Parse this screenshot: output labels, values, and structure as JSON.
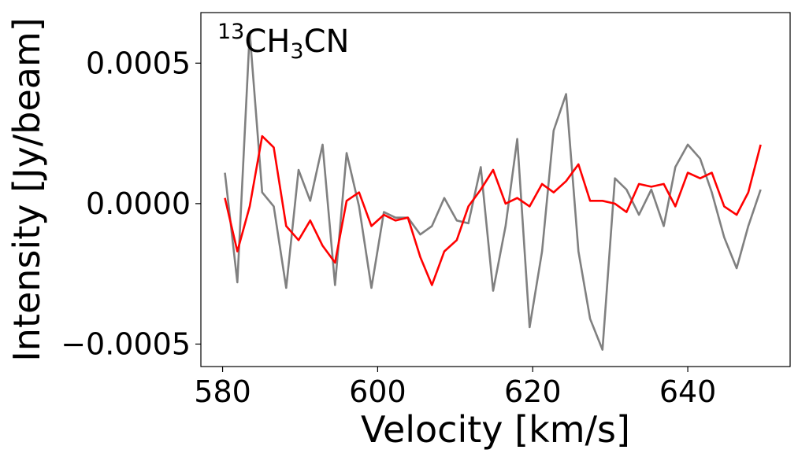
{
  "chart_data": {
    "type": "line",
    "title": "",
    "annotation": {
      "sup": "13",
      "pre": "CH",
      "sub": "3",
      "post": "CN"
    },
    "xlabel": "Velocity [km/s]",
    "ylabel": "Intensity [Jy/beam]",
    "xlim": [
      577.2,
      653.2
    ],
    "ylim": [
      -0.00058,
      0.00068
    ],
    "xticks": [
      {
        "value": 580,
        "label": "580"
      },
      {
        "value": 600,
        "label": "600"
      },
      {
        "value": 620,
        "label": "620"
      },
      {
        "value": 640,
        "label": "640"
      }
    ],
    "yticks": [
      {
        "value": 0.0005,
        "label": "0.0005"
      },
      {
        "value": 0.0,
        "label": "0.0000"
      },
      {
        "value": -0.0005,
        "label": "−0.0005"
      }
    ],
    "grid": false,
    "x": [
      580.3,
      581.9,
      583.5,
      585.1,
      586.6,
      588.2,
      589.8,
      591.3,
      592.9,
      594.5,
      596.0,
      597.6,
      599.2,
      600.8,
      602.3,
      603.9,
      605.5,
      607.0,
      608.6,
      610.2,
      611.7,
      613.3,
      614.9,
      616.5,
      618.0,
      619.6,
      621.2,
      622.7,
      624.3,
      625.9,
      627.4,
      629.0,
      630.6,
      632.1,
      633.7,
      635.3,
      636.9,
      638.4,
      640.0,
      641.6,
      643.1,
      644.7,
      646.3,
      647.8,
      649.4
    ],
    "series": [
      {
        "color": "#808080",
        "values": [
          0.00011,
          -0.00028,
          0.00061,
          4e-05,
          -1e-05,
          -0.0003,
          0.00012,
          1e-05,
          0.00021,
          -0.00029,
          0.00018,
          -1e-05,
          -0.0003,
          -3e-05,
          -5e-05,
          -5e-05,
          -0.00011,
          -8e-05,
          2e-05,
          -6e-05,
          -7e-05,
          0.00013,
          -0.00031,
          -8e-05,
          0.00023,
          -0.00044,
          -0.00017,
          0.00026,
          0.00039,
          -0.00017,
          -0.00041,
          -0.00052,
          9e-05,
          5e-05,
          -4e-05,
          5e-05,
          -8e-05,
          0.00013,
          0.00021,
          0.00016,
          4e-05,
          -0.00012,
          -0.00023,
          -8e-05,
          5e-05
        ]
      },
      {
        "color": "#ff0000",
        "values": [
          2e-05,
          -0.00017,
          -1e-05,
          0.00024,
          0.0002,
          -8e-05,
          -0.00013,
          -6e-05,
          -0.00015,
          -0.00021,
          1e-05,
          4e-05,
          -8e-05,
          -4e-05,
          -6e-05,
          -5e-05,
          -0.00019,
          -0.00029,
          -0.00017,
          -0.00013,
          -1e-05,
          5e-05,
          0.00012,
          0.0,
          2e-05,
          -1e-05,
          7e-05,
          4e-05,
          8e-05,
          0.00014,
          1e-05,
          1e-05,
          0.0,
          -3e-05,
          7e-05,
          6e-05,
          7e-05,
          -1e-05,
          0.00011,
          9e-05,
          0.00011,
          -1e-05,
          -4e-05,
          4e-05,
          0.00021
        ]
      }
    ]
  }
}
